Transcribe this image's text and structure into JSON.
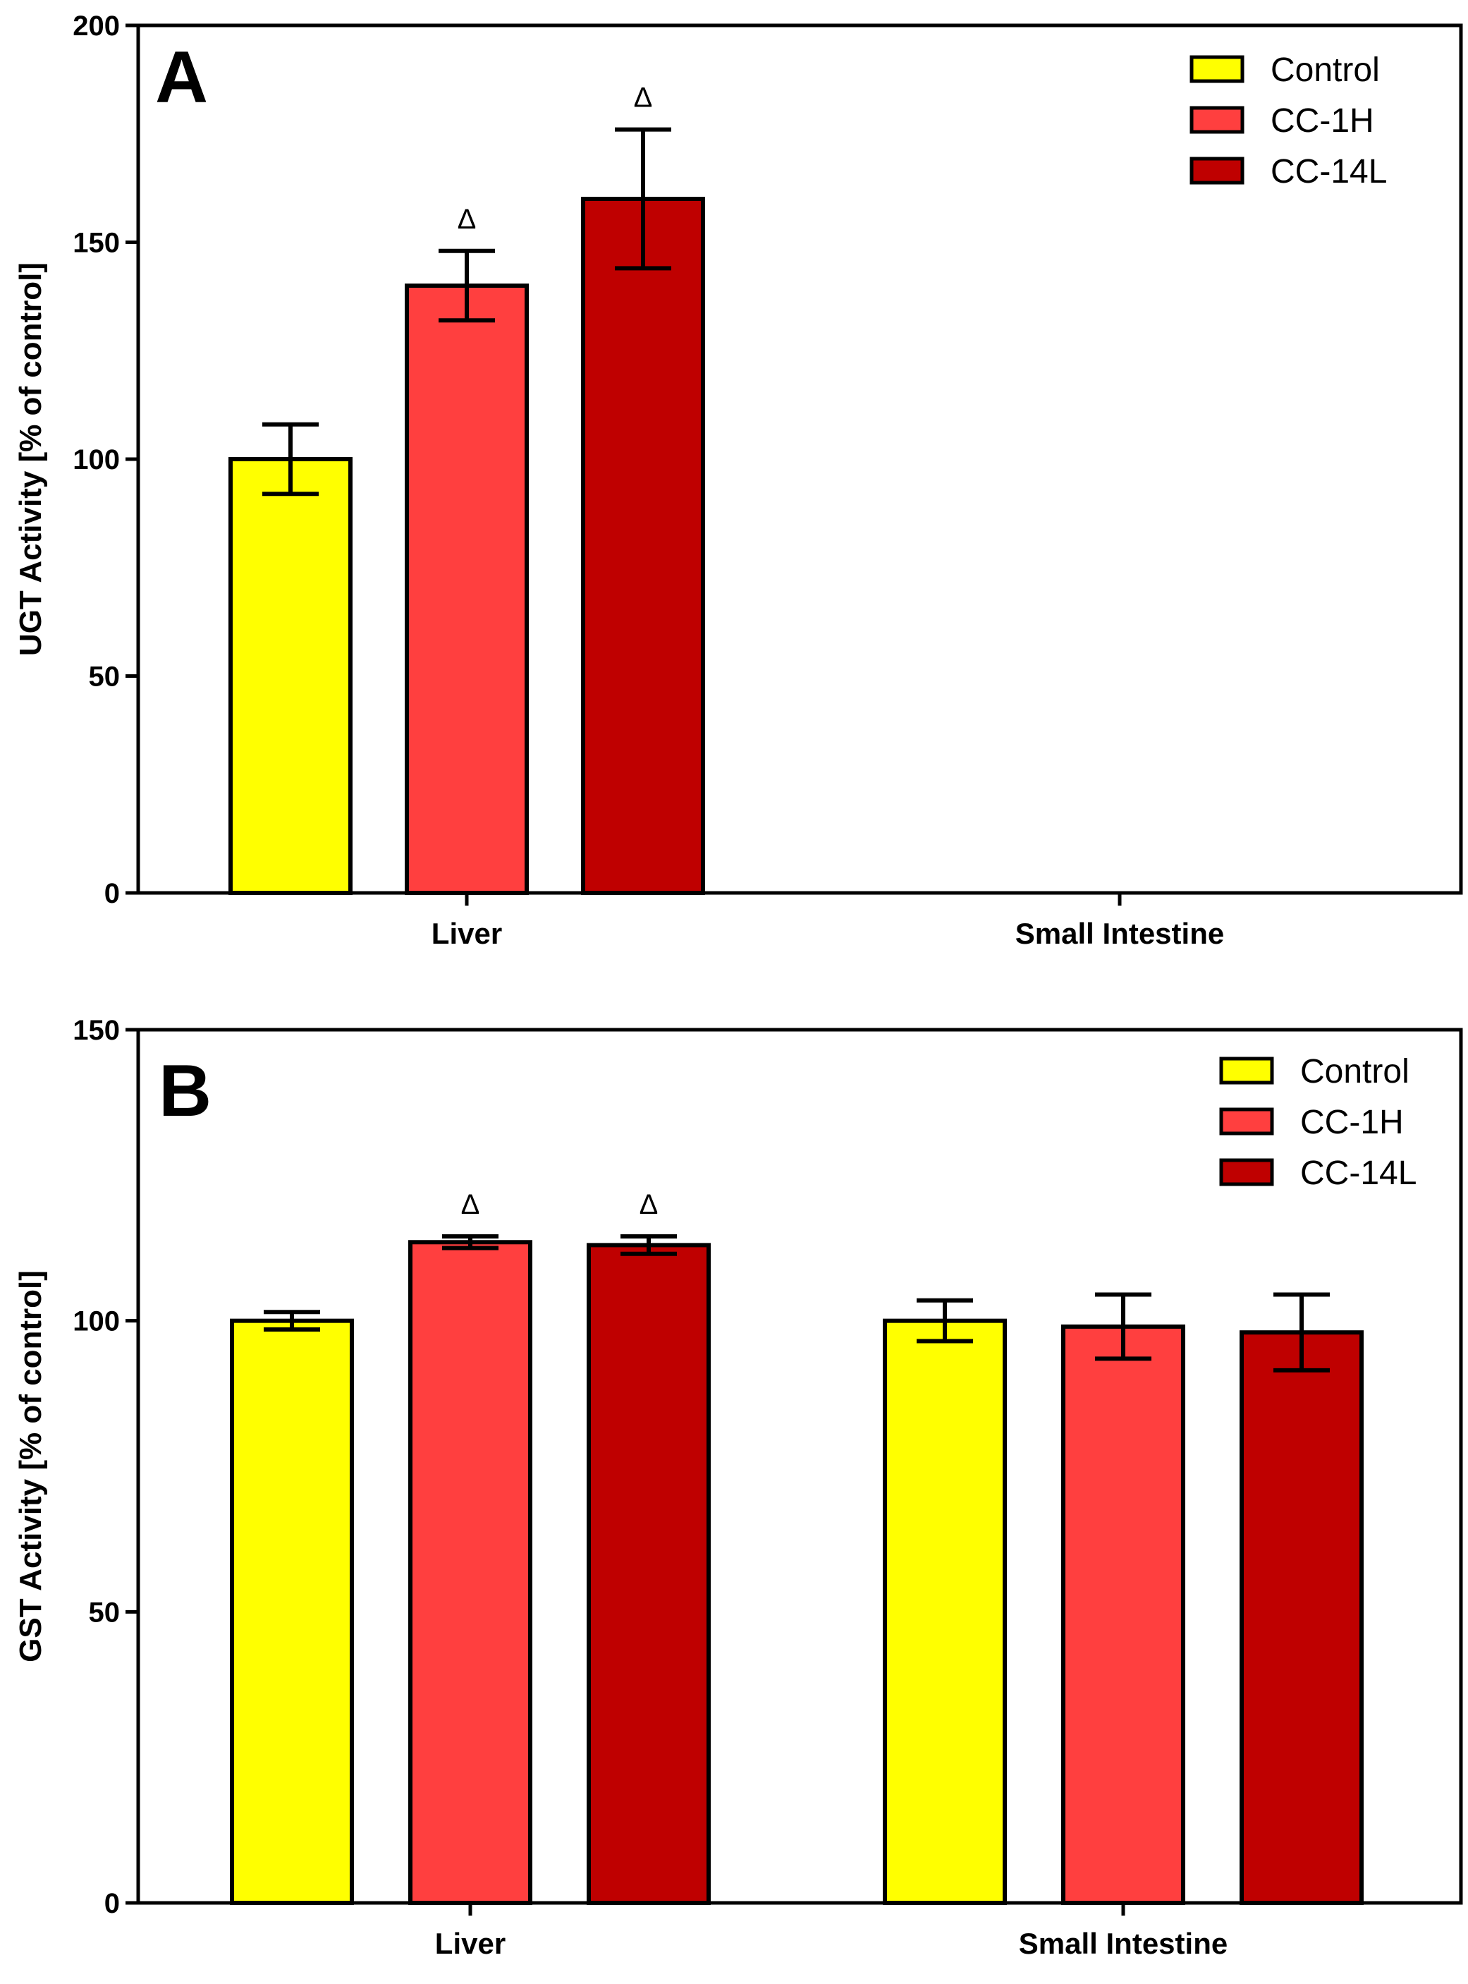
{
  "colors": {
    "Control": "#ffff00",
    "CC-1H": "#ff3f3f",
    "CC-14L": "#bf0000",
    "axis": "#000000"
  },
  "chart_data": [
    {
      "type": "bar",
      "panel": "A",
      "ylabel": "UGT Activity [% of control]",
      "xlabel": "",
      "ylim": [
        0,
        200
      ],
      "yticks": [
        0,
        50,
        100,
        150,
        200
      ],
      "categories": [
        "Liver",
        "Small Intestine"
      ],
      "legend": [
        "Control",
        "CC-1H",
        "CC-14L"
      ],
      "legend_position": "top-right",
      "series": [
        {
          "name": "Control",
          "values": [
            100,
            null
          ],
          "errors": [
            8,
            null
          ],
          "sig": [
            null,
            null
          ]
        },
        {
          "name": "CC-1H",
          "values": [
            140,
            null
          ],
          "errors": [
            8,
            null
          ],
          "sig": [
            "Δ",
            null
          ]
        },
        {
          "name": "CC-14L",
          "values": [
            160,
            null
          ],
          "errors": [
            16,
            null
          ],
          "sig": [
            "Δ",
            null
          ]
        }
      ]
    },
    {
      "type": "bar",
      "panel": "B",
      "ylabel": "GST Activity [% of control]",
      "xlabel": "",
      "ylim": [
        0,
        150
      ],
      "yticks": [
        0,
        50,
        100,
        150
      ],
      "categories": [
        "Liver",
        "Small Intestine"
      ],
      "legend": [
        "Control",
        "CC-1H",
        "CC-14L"
      ],
      "legend_position": "top-right",
      "series": [
        {
          "name": "Control",
          "values": [
            100,
            100
          ],
          "errors": [
            1.5,
            3.5
          ],
          "sig": [
            null,
            null
          ]
        },
        {
          "name": "CC-1H",
          "values": [
            113.5,
            99
          ],
          "errors": [
            1,
            5.5
          ],
          "sig": [
            "Δ",
            null
          ]
        },
        {
          "name": "CC-14L",
          "values": [
            113,
            98
          ],
          "errors": [
            1.5,
            6.5
          ],
          "sig": [
            "Δ",
            null
          ]
        }
      ]
    }
  ]
}
